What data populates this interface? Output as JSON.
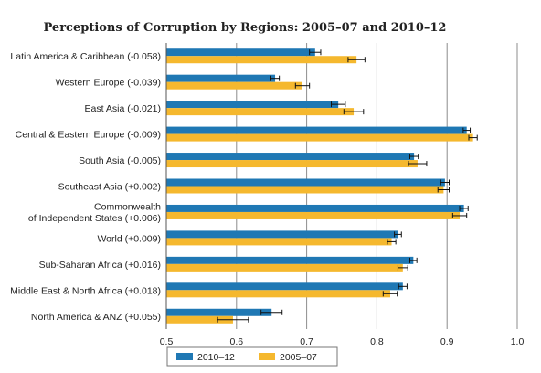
{
  "chart_data": {
    "type": "bar",
    "orientation": "horizontal",
    "title": "Perceptions of Corruption by Regions: 2005–07 and 2010–12",
    "xlabel": "",
    "ylabel": "",
    "xlim": [
      0.5,
      1.0
    ],
    "x_ticks": [
      "0.5",
      "0.6",
      "0.7",
      "0.8",
      "0.9",
      "1.0"
    ],
    "x_tick_values": [
      0.5,
      0.6,
      0.7,
      0.8,
      0.9,
      1.0
    ],
    "grid": "vertical",
    "legend_position": "bottom",
    "categories": [
      [
        "Latin America & Caribbean (-0.058)"
      ],
      [
        "Western Europe (-0.039)"
      ],
      [
        "East Asia (-0.021)"
      ],
      [
        "Central & Eastern Europe (-0.009)"
      ],
      [
        "South Asia (-0.005)"
      ],
      [
        "Southeast Asia (+0.002)"
      ],
      [
        "Commonwealth",
        "of Independent States (+0.006)"
      ],
      [
        "World (+0.009)"
      ],
      [
        "Sub-Saharan Africa (+0.016)"
      ],
      [
        "Middle East & North Africa (+0.018)"
      ],
      [
        "North America & ANZ (+0.055)"
      ]
    ],
    "series": [
      {
        "name": "2010–12",
        "color": "#1f78b4",
        "values": [
          0.712,
          0.655,
          0.745,
          0.928,
          0.853,
          0.897,
          0.924,
          0.83,
          0.852,
          0.837,
          0.65
        ],
        "error": [
          0.008,
          0.006,
          0.01,
          0.005,
          0.006,
          0.006,
          0.006,
          0.005,
          0.005,
          0.006,
          0.015
        ]
      },
      {
        "name": "2005–07",
        "color": "#f5b82e",
        "values": [
          0.771,
          0.694,
          0.767,
          0.937,
          0.858,
          0.895,
          0.918,
          0.821,
          0.837,
          0.819,
          0.595
        ],
        "error": [
          0.012,
          0.01,
          0.014,
          0.006,
          0.013,
          0.008,
          0.01,
          0.006,
          0.007,
          0.01,
          0.022
        ]
      }
    ]
  }
}
